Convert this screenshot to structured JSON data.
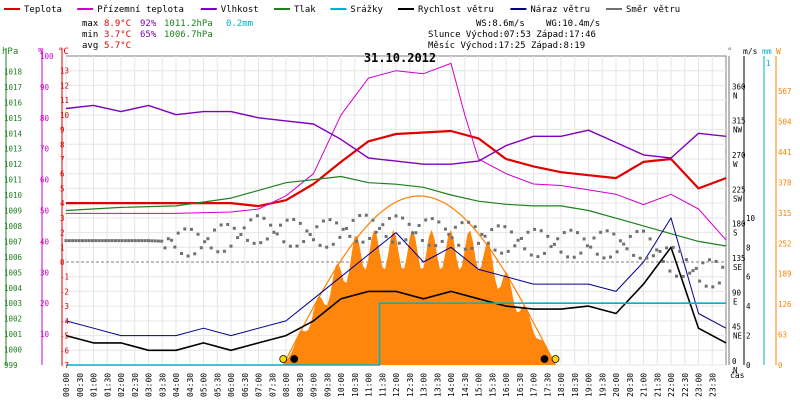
{
  "legend": [
    {
      "label": "Teplota",
      "color": "#e00000"
    },
    {
      "label": "Přízemní teplota",
      "color": "#d000d0"
    },
    {
      "label": "Vlhkost",
      "color": "#8000c0"
    },
    {
      "label": "Tlak",
      "color": "#208020"
    },
    {
      "label": "Srážky",
      "color": "#00b0c8"
    },
    {
      "label": "Rychlost větru",
      "color": "#000000"
    },
    {
      "label": "Náraz větru",
      "color": "#000090"
    },
    {
      "label": "Směr větru",
      "color": "#707070"
    }
  ],
  "stats": {
    "max_label": "max",
    "max_temp": "8.9°C",
    "max_hum": "92%",
    "max_press": "1011.2hPa",
    "max_rain": "0.2mm",
    "min_label": "min",
    "min_temp": "3.7°C",
    "min_hum": "65%",
    "min_press": "1006.7hPa",
    "avg_label": "avg",
    "avg_temp": "5.7°C",
    "ws": "WS:8.6m/s",
    "wg": "WG:10.4m/s",
    "sun": "Slunce Východ:07:53  Západ:17:46",
    "moon": "Měsíc  Východ:17:25  Západ:8:19"
  },
  "colors": {
    "temp": "#e00000",
    "ground": "#d000d0",
    "hum": "#8000c0",
    "press": "#208020",
    "rain": "#00b0c8",
    "wind": "#000000",
    "gust": "#000090",
    "dir": "#707070",
    "sunfill": "#ff8000",
    "suncurve": "#ff8000"
  },
  "chart_data": {
    "type": "line",
    "title": "31.10.2012",
    "x_label": "čas",
    "x_ticks": [
      "00:00",
      "00:30",
      "01:00",
      "01:30",
      "02:00",
      "02:30",
      "03:00",
      "03:30",
      "04:00",
      "04:30",
      "05:00",
      "05:30",
      "06:00",
      "06:30",
      "07:00",
      "07:30",
      "08:00",
      "08:30",
      "09:00",
      "09:30",
      "10:00",
      "10:30",
      "11:00",
      "11:30",
      "12:00",
      "12:30",
      "13:00",
      "13:30",
      "14:00",
      "14:30",
      "15:00",
      "15:30",
      "16:00",
      "16:30",
      "17:00",
      "17:30",
      "18:00",
      "18:30",
      "19:00",
      "19:30",
      "20:00",
      "20:30",
      "21:00",
      "21:30",
      "22:00",
      "22:30",
      "23:00",
      "23:30"
    ],
    "axes": {
      "hpa": {
        "label": "hPa",
        "min": 999,
        "max": 1019,
        "ticks": [
          999,
          1000,
          1001,
          1002,
          1003,
          1004,
          1005,
          1006,
          1007,
          1008,
          1009,
          1010,
          1011,
          1012,
          1013,
          1014,
          1015,
          1016,
          1017,
          1018
        ]
      },
      "pct": {
        "label": "%",
        "min": 0,
        "max": 100,
        "ticks": [
          10,
          20,
          30,
          40,
          50,
          60,
          70,
          80,
          90,
          100
        ]
      },
      "temp": {
        "label": "°C",
        "min": -7,
        "max": 14,
        "ticks": [
          -7,
          -6,
          -5,
          -4,
          -3,
          -2,
          -1,
          0,
          1,
          2,
          3,
          4,
          5,
          6,
          7,
          8,
          9,
          10,
          11,
          12,
          13
        ]
      },
      "dir": {
        "label": "°",
        "min": 0,
        "max": 405,
        "ticks": [
          0,
          45,
          90,
          135,
          180,
          225,
          270,
          315,
          360
        ],
        "compass": [
          "N",
          "NE",
          "E",
          "SE",
          "S",
          "SW",
          "W",
          "NW",
          "N"
        ]
      },
      "ms": {
        "label": "m/s",
        "min": 0,
        "max": 21,
        "ticks": [
          0,
          2,
          4,
          6,
          8,
          10
        ]
      },
      "mm": {
        "label": "mm",
        "min": 0,
        "max": 1
      },
      "wm2": {
        "label": "W",
        "min": 0,
        "max": 640,
        "ticks": [
          0,
          63,
          126,
          189,
          252,
          315,
          378,
          441,
          504,
          567
        ]
      }
    },
    "series": [
      {
        "name": "Teplota",
        "axis": "temp",
        "points": [
          [
            0,
            4
          ],
          [
            2,
            4
          ],
          [
            4,
            4
          ],
          [
            6,
            4
          ],
          [
            7,
            3.8
          ],
          [
            8,
            4.2
          ],
          [
            9,
            5.3
          ],
          [
            10,
            6.8
          ],
          [
            11,
            8.2
          ],
          [
            12,
            8.7
          ],
          [
            13,
            8.8
          ],
          [
            14,
            8.9
          ],
          [
            15,
            8.4
          ],
          [
            16,
            7
          ],
          [
            17,
            6.5
          ],
          [
            18,
            6.1
          ],
          [
            19,
            5.9
          ],
          [
            20,
            5.7
          ],
          [
            21,
            6.8
          ],
          [
            22,
            7
          ],
          [
            23,
            5
          ],
          [
            24,
            5.7
          ]
        ]
      },
      {
        "name": "Přízemní teplota",
        "axis": "temp",
        "points": [
          [
            0,
            3.3
          ],
          [
            2,
            3.3
          ],
          [
            4,
            3.3
          ],
          [
            6,
            3.4
          ],
          [
            7,
            3.6
          ],
          [
            8,
            4.5
          ],
          [
            9,
            6
          ],
          [
            10,
            10
          ],
          [
            11,
            12.5
          ],
          [
            12,
            13
          ],
          [
            13,
            12.8
          ],
          [
            14,
            13.5
          ],
          [
            14.5,
            10
          ],
          [
            15,
            7
          ],
          [
            16,
            6
          ],
          [
            17,
            5.3
          ],
          [
            18,
            5.2
          ],
          [
            19,
            4.9
          ],
          [
            20,
            4.6
          ],
          [
            21,
            3.9
          ],
          [
            22,
            4.6
          ],
          [
            23,
            3.6
          ],
          [
            24,
            1.5
          ]
        ]
      },
      {
        "name": "Vlhkost",
        "axis": "pct",
        "points": [
          [
            0,
            83
          ],
          [
            1,
            84
          ],
          [
            2,
            82
          ],
          [
            3,
            84
          ],
          [
            4,
            81
          ],
          [
            5,
            82
          ],
          [
            6,
            82
          ],
          [
            7,
            80
          ],
          [
            8,
            79
          ],
          [
            9,
            78
          ],
          [
            10,
            73
          ],
          [
            11,
            67
          ],
          [
            12,
            66
          ],
          [
            13,
            65
          ],
          [
            14,
            65
          ],
          [
            15,
            66
          ],
          [
            16,
            71
          ],
          [
            17,
            74
          ],
          [
            18,
            74
          ],
          [
            19,
            76
          ],
          [
            20,
            72
          ],
          [
            21,
            68
          ],
          [
            22,
            67
          ],
          [
            23,
            75
          ],
          [
            24,
            74
          ]
        ]
      },
      {
        "name": "Tlak",
        "axis": "hpa",
        "points": [
          [
            0,
            1009
          ],
          [
            2,
            1009.2
          ],
          [
            4,
            1009.3
          ],
          [
            6,
            1009.8
          ],
          [
            7,
            1010.3
          ],
          [
            8,
            1010.8
          ],
          [
            9,
            1011
          ],
          [
            10,
            1011.2
          ],
          [
            11,
            1010.8
          ],
          [
            12,
            1010.7
          ],
          [
            13,
            1010.5
          ],
          [
            14,
            1010
          ],
          [
            15,
            1009.6
          ],
          [
            16,
            1009.4
          ],
          [
            17,
            1009.3
          ],
          [
            18,
            1009.3
          ],
          [
            19,
            1009
          ],
          [
            20,
            1008.5
          ],
          [
            21,
            1008
          ],
          [
            22,
            1007.5
          ],
          [
            23,
            1007
          ],
          [
            24,
            1006.7
          ]
        ]
      },
      {
        "name": "Rychlost větru",
        "axis": "ms",
        "points": [
          [
            0,
            2
          ],
          [
            1,
            1.5
          ],
          [
            2,
            1.5
          ],
          [
            3,
            1
          ],
          [
            4,
            1
          ],
          [
            5,
            1.5
          ],
          [
            6,
            1
          ],
          [
            7,
            1.5
          ],
          [
            8,
            2
          ],
          [
            9,
            3
          ],
          [
            10,
            4.5
          ],
          [
            11,
            5
          ],
          [
            12,
            5
          ],
          [
            13,
            4.5
          ],
          [
            14,
            5
          ],
          [
            15,
            4.5
          ],
          [
            16,
            4
          ],
          [
            17,
            3.8
          ],
          [
            18,
            3.8
          ],
          [
            19,
            4
          ],
          [
            20,
            3.5
          ],
          [
            21,
            5.5
          ],
          [
            22,
            8
          ],
          [
            23,
            2.5
          ],
          [
            24,
            1.5
          ]
        ]
      },
      {
        "name": "Náraz větru",
        "axis": "ms",
        "points": [
          [
            0,
            3
          ],
          [
            1,
            2.5
          ],
          [
            2,
            2
          ],
          [
            3,
            2
          ],
          [
            4,
            2
          ],
          [
            5,
            2.5
          ],
          [
            6,
            2
          ],
          [
            7,
            2.5
          ],
          [
            8,
            3
          ],
          [
            9,
            4.5
          ],
          [
            10,
            6
          ],
          [
            11,
            7.5
          ],
          [
            12,
            9
          ],
          [
            13,
            7
          ],
          [
            14,
            8
          ],
          [
            15,
            6.5
          ],
          [
            16,
            6
          ],
          [
            17,
            5.5
          ],
          [
            18,
            5.5
          ],
          [
            19,
            5.5
          ],
          [
            20,
            5
          ],
          [
            21,
            7
          ],
          [
            22,
            10
          ],
          [
            23,
            3.5
          ],
          [
            24,
            2.5
          ]
        ]
      },
      {
        "name": "Směr větru",
        "axis": "dir",
        "points": [
          [
            0,
            163
          ],
          [
            3,
            163
          ],
          [
            5,
            160
          ],
          [
            7,
            178
          ],
          [
            9,
            170
          ],
          [
            11,
            180
          ],
          [
            13,
            175
          ],
          [
            15,
            168
          ],
          [
            17,
            160
          ],
          [
            19,
            158
          ],
          [
            21,
            158
          ],
          [
            22,
            138
          ],
          [
            23,
            120
          ],
          [
            24,
            120
          ]
        ]
      }
    ],
    "rain": {
      "axis": "mm",
      "points": [
        [
          0,
          0
        ],
        [
          11.4,
          0.2
        ],
        [
          24,
          0.2
        ]
      ]
    },
    "solar": {
      "axis": "wm2",
      "curve_max": 350,
      "fill_max": 280,
      "start": 7.9,
      "end": 17.8
    },
    "markers": [
      "sun-rise",
      "moon-set",
      "moon-rise",
      "sun-set"
    ]
  }
}
